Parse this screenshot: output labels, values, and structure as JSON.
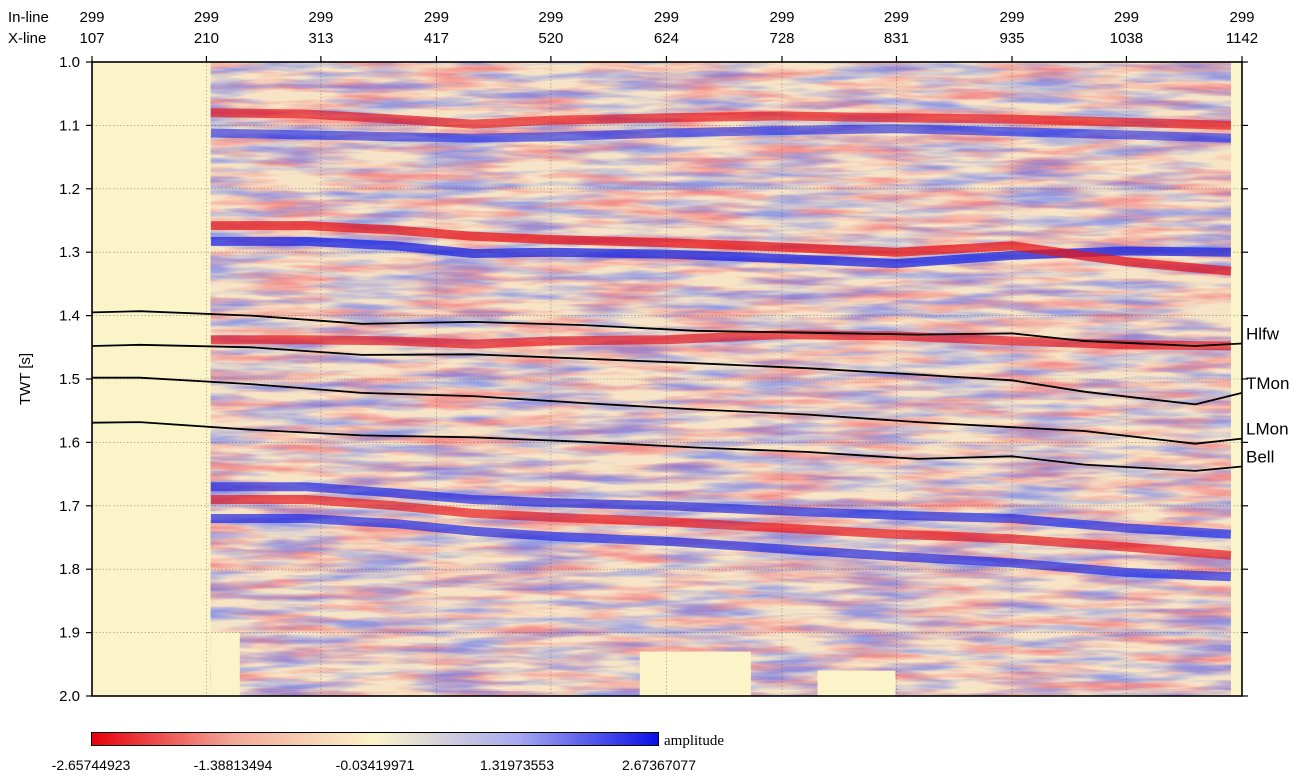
{
  "chart_data": {
    "type": "heatmap",
    "title": "",
    "ylabel": "TWT [s]",
    "ylim": [
      1.0,
      2.0
    ],
    "yticks": [
      "1.0",
      "1.1",
      "1.2",
      "1.3",
      "1.4",
      "1.5",
      "1.6",
      "1.7",
      "1.8",
      "1.9",
      "2.0"
    ],
    "top_axis": {
      "row_labels": [
        "In-line",
        "X-line"
      ],
      "inline": [
        "299",
        "299",
        "299",
        "299",
        "299",
        "299",
        "299",
        "299",
        "299",
        "299",
        "299"
      ],
      "xline": [
        "107",
        "210",
        "313",
        "417",
        "520",
        "624",
        "728",
        "831",
        "935",
        "1038",
        "1142"
      ]
    },
    "xlim": [
      107,
      1142
    ],
    "data_xrange": [
      214,
      1132
    ],
    "grid": true,
    "colorbar": {
      "label": "amplitude",
      "min": -2.65744923,
      "max": 2.67367077,
      "tick_labels": [
        "-2.65744923",
        "-1.38813494",
        "-0.03419971",
        "1.31973553",
        "2.67367077"
      ],
      "colors": [
        "#e8000a",
        "#f3a898",
        "#fbf3c8",
        "#a8aaf0",
        "#0a10e8"
      ],
      "placement": "bottom"
    },
    "background_color": "#fbf4c9",
    "horizons": [
      {
        "name": "Hlfw",
        "x": [
          107,
          150,
          250,
          350,
          450,
          550,
          650,
          750,
          850,
          935,
          1000,
          1100,
          1142
        ],
        "y": [
          1.395,
          1.393,
          1.4,
          1.413,
          1.41,
          1.415,
          1.424,
          1.427,
          1.43,
          1.428,
          1.44,
          1.448,
          1.444
        ]
      },
      {
        "name": "TMon",
        "x": [
          107,
          150,
          250,
          350,
          450,
          550,
          650,
          750,
          850,
          935,
          1000,
          1100,
          1142
        ],
        "y": [
          1.448,
          1.446,
          1.45,
          1.462,
          1.461,
          1.468,
          1.475,
          1.483,
          1.493,
          1.502,
          1.52,
          1.54,
          1.522
        ]
      },
      {
        "name": "LMon",
        "x": [
          107,
          150,
          250,
          350,
          450,
          550,
          650,
          750,
          850,
          935,
          1000,
          1100,
          1142
        ],
        "y": [
          1.498,
          1.498,
          1.508,
          1.522,
          1.527,
          1.538,
          1.548,
          1.556,
          1.568,
          1.576,
          1.582,
          1.602,
          1.594
        ]
      },
      {
        "name": "Bell",
        "x": [
          107,
          150,
          250,
          350,
          450,
          550,
          650,
          750,
          850,
          935,
          1000,
          1100,
          1142
        ],
        "y": [
          1.569,
          1.568,
          1.58,
          1.589,
          1.592,
          1.599,
          1.608,
          1.615,
          1.626,
          1.622,
          1.635,
          1.645,
          1.638
        ]
      }
    ],
    "reflectors": [
      {
        "color": "blue",
        "amp": 1.0,
        "y": [
          1.283,
          1.283,
          1.29,
          1.302,
          1.3,
          1.303,
          1.31,
          1.318,
          1.305,
          1.298,
          1.3
        ],
        "x": [
          214,
          300,
          380,
          450,
          520,
          624,
          728,
          831,
          935,
          1038,
          1132
        ]
      },
      {
        "color": "red",
        "amp": 1.0,
        "y": [
          1.258,
          1.258,
          1.265,
          1.275,
          1.28,
          1.285,
          1.292,
          1.3,
          1.29,
          1.315,
          1.33
        ],
        "x": [
          214,
          300,
          380,
          450,
          520,
          624,
          728,
          831,
          935,
          1038,
          1132
        ]
      },
      {
        "color": "red",
        "amp": 0.9,
        "y": [
          1.08,
          1.082,
          1.09,
          1.098,
          1.092,
          1.088,
          1.085,
          1.088,
          1.09,
          1.095,
          1.1
        ],
        "x": [
          214,
          300,
          380,
          450,
          520,
          624,
          728,
          831,
          935,
          1038,
          1132
        ]
      },
      {
        "color": "blue",
        "amp": 0.8,
        "y": [
          1.112,
          1.115,
          1.118,
          1.12,
          1.118,
          1.112,
          1.108,
          1.105,
          1.11,
          1.115,
          1.12
        ],
        "x": [
          214,
          300,
          380,
          450,
          520,
          624,
          728,
          831,
          935,
          1038,
          1132
        ]
      },
      {
        "color": "red",
        "amp": 0.9,
        "y": [
          1.438,
          1.438,
          1.44,
          1.445,
          1.44,
          1.438,
          1.43,
          1.432,
          1.44,
          1.446,
          1.448
        ],
        "x": [
          214,
          300,
          380,
          450,
          520,
          624,
          728,
          831,
          935,
          1038,
          1132
        ]
      },
      {
        "color": "blue",
        "amp": 0.9,
        "y": [
          1.67,
          1.67,
          1.68,
          1.69,
          1.695,
          1.7,
          1.708,
          1.715,
          1.72,
          1.735,
          1.745
        ],
        "x": [
          214,
          300,
          380,
          450,
          520,
          624,
          728,
          831,
          935,
          1038,
          1132
        ]
      },
      {
        "color": "red",
        "amp": 0.9,
        "y": [
          1.69,
          1.69,
          1.7,
          1.712,
          1.718,
          1.725,
          1.735,
          1.745,
          1.752,
          1.765,
          1.778
        ],
        "x": [
          214,
          300,
          380,
          450,
          520,
          624,
          728,
          831,
          935,
          1038,
          1132
        ]
      },
      {
        "color": "blue",
        "amp": 0.9,
        "y": [
          1.72,
          1.72,
          1.728,
          1.74,
          1.748,
          1.756,
          1.768,
          1.78,
          1.79,
          1.805,
          1.812
        ],
        "x": [
          214,
          300,
          380,
          450,
          520,
          624,
          728,
          831,
          935,
          1038,
          1132
        ]
      }
    ],
    "bottom_gaps": [
      {
        "x": [
          214,
          240
        ],
        "y_start": 1.9
      },
      {
        "x": [
          600,
          700
        ],
        "y_start": 1.93
      },
      {
        "x": [
          760,
          830
        ],
        "y_start": 1.96
      }
    ]
  }
}
